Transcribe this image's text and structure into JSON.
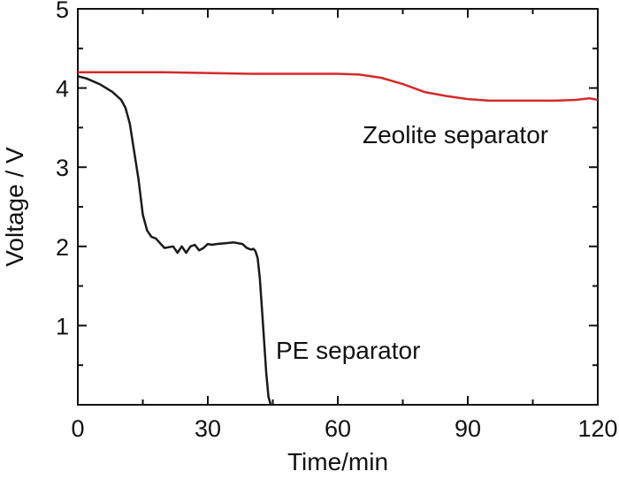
{
  "chart_data": {
    "type": "line",
    "xlabel": "Time/min",
    "ylabel": "Voltage / V",
    "xlim": [
      0,
      120
    ],
    "ylim": [
      0,
      5
    ],
    "xticks": [
      0,
      30,
      60,
      90,
      120
    ],
    "yticks": [
      1,
      2,
      3,
      4,
      5
    ],
    "grid": false,
    "series": [
      {
        "name": "Zeolite separator",
        "color": "#d42a2a",
        "x": [
          0,
          10,
          20,
          30,
          40,
          50,
          60,
          65,
          70,
          75,
          80,
          85,
          90,
          95,
          100,
          105,
          110,
          115,
          118,
          120
        ],
        "y": [
          4.2,
          4.2,
          4.2,
          4.19,
          4.18,
          4.18,
          4.18,
          4.17,
          4.13,
          4.05,
          3.95,
          3.9,
          3.86,
          3.84,
          3.84,
          3.84,
          3.84,
          3.85,
          3.87,
          3.85
        ]
      },
      {
        "name": "PE separator",
        "color": "#1a1a1a",
        "x": [
          0,
          2,
          5,
          8,
          10,
          11,
          12,
          13,
          14,
          15,
          16,
          17,
          18,
          20,
          22,
          23,
          24,
          25,
          26,
          27,
          28,
          29,
          30,
          31,
          32,
          34,
          36,
          38,
          39,
          40,
          40.5,
          41,
          41.5,
          42,
          42.5,
          43,
          43.5,
          44,
          44.5
        ],
        "y": [
          4.15,
          4.12,
          4.05,
          3.95,
          3.85,
          3.75,
          3.55,
          3.2,
          2.85,
          2.4,
          2.2,
          2.12,
          2.1,
          1.98,
          2.0,
          1.92,
          2.0,
          1.92,
          2.0,
          2.02,
          1.95,
          1.98,
          2.03,
          2.02,
          2.03,
          2.04,
          2.05,
          2.03,
          1.98,
          1.96,
          1.97,
          1.94,
          1.85,
          1.6,
          1.2,
          0.8,
          0.4,
          0.1,
          0.0
        ]
      }
    ]
  }
}
